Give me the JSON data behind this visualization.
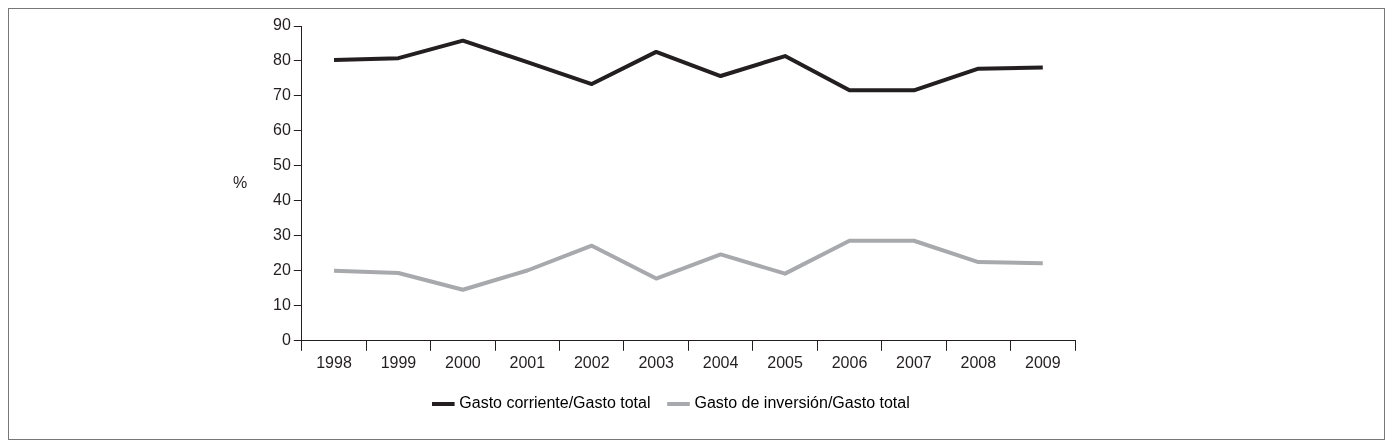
{
  "chart_data": {
    "type": "line",
    "ylabel": "%",
    "categories": [
      "1998",
      "1999",
      "2000",
      "2001",
      "2002",
      "2003",
      "2004",
      "2005",
      "2006",
      "2007",
      "2008",
      "2009"
    ],
    "series": [
      {
        "name": "Gasto corriente/Gasto total",
        "color": "#231f20",
        "values": [
          80.3,
          80.8,
          85.8,
          79.7,
          73.4,
          82.6,
          75.7,
          81.4,
          71.6,
          71.6,
          77.8,
          78.1
        ]
      },
      {
        "name": "Gasto de inversión/Gasto total",
        "color": "#a7a9ac",
        "values": [
          20.0,
          19.4,
          14.6,
          20.1,
          27.2,
          17.8,
          24.7,
          19.2,
          28.6,
          28.6,
          22.5,
          22.2
        ]
      }
    ],
    "ylim": [
      0,
      90
    ],
    "yticks": [
      0,
      10,
      20,
      30,
      40,
      50,
      60,
      70,
      80,
      90
    ],
    "grid": false,
    "legend": "bottom",
    "marker": "none",
    "line_style": "solid"
  }
}
